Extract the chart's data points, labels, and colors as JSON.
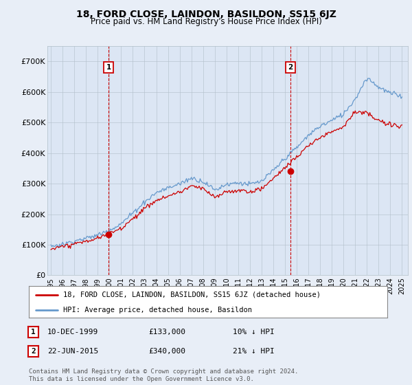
{
  "title": "18, FORD CLOSE, LAINDON, BASILDON, SS15 6JZ",
  "subtitle": "Price paid vs. HM Land Registry's House Price Index (HPI)",
  "background_color": "#e8eef7",
  "plot_bg_color": "#dce6f4",
  "legend_label_red": "18, FORD CLOSE, LAINDON, BASILDON, SS15 6JZ (detached house)",
  "legend_label_blue": "HPI: Average price, detached house, Basildon",
  "annotation1_date": "10-DEC-1999",
  "annotation1_price": "£133,000",
  "annotation1_hpi": "10% ↓ HPI",
  "annotation2_date": "22-JUN-2015",
  "annotation2_price": "£340,000",
  "annotation2_hpi": "21% ↓ HPI",
  "footnote": "Contains HM Land Registry data © Crown copyright and database right 2024.\nThis data is licensed under the Open Government Licence v3.0.",
  "ylim": [
    0,
    750000
  ],
  "yticks": [
    0,
    100000,
    200000,
    300000,
    400000,
    500000,
    600000,
    700000
  ],
  "ytick_labels": [
    "£0",
    "£100K",
    "£200K",
    "£300K",
    "£400K",
    "£500K",
    "£600K",
    "£700K"
  ],
  "sale1_x": 1999.92,
  "sale1_y": 133000,
  "sale2_x": 2015.47,
  "sale2_y": 340000,
  "sale1_vline_x": 1999.92,
  "sale2_vline_x": 2015.47,
  "grid_color": "#b0bec8",
  "red_color": "#cc0000",
  "blue_color": "#6699cc",
  "xlim_left": 1994.7,
  "xlim_right": 2025.5
}
